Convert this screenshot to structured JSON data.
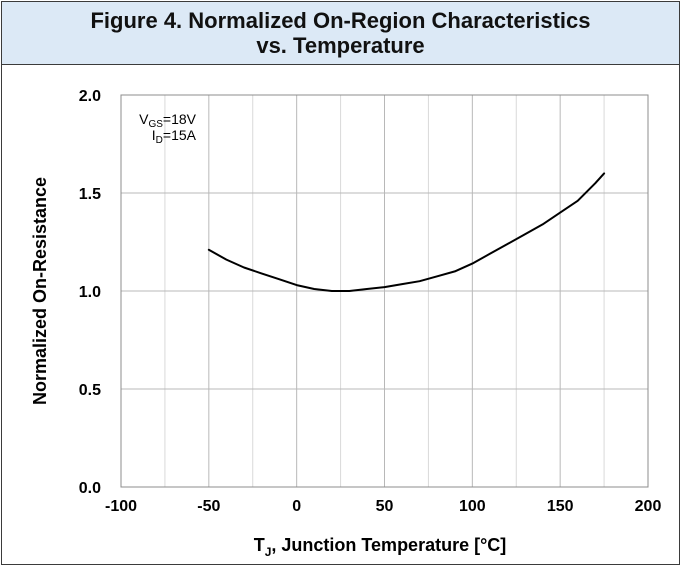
{
  "chart_data": {
    "type": "line",
    "title_line1": "Figure 4. Normalized On-Region Characteristics",
    "title_line2": "vs. Temperature",
    "xlabel_main": "T",
    "xlabel_sub": "J",
    "xlabel_rest": ", Junction Temperature [°C]",
    "ylabel": "Normalized On-Resistance",
    "xlim": [
      -100,
      200
    ],
    "ylim": [
      0.0,
      2.0
    ],
    "x_ticks": [
      -100,
      -50,
      0,
      50,
      100,
      150,
      200
    ],
    "x_tick_labels": [
      "-100",
      "-50",
      "0",
      "50",
      "100",
      "150",
      "200"
    ],
    "y_ticks": [
      0.0,
      0.5,
      1.0,
      1.5,
      2.0
    ],
    "y_tick_labels": [
      "0.0",
      "0.5",
      "1.0",
      "1.5",
      "2.0"
    ],
    "grid": true,
    "annotations": [
      {
        "main": "V",
        "sub": "GS",
        "rest": "=18V"
      },
      {
        "main": "I",
        "sub": "D",
        "rest": "=15A"
      }
    ],
    "series": [
      {
        "color": "#000000",
        "x": [
          -50,
          -40,
          -30,
          -20,
          -10,
          0,
          10,
          20,
          25,
          30,
          40,
          50,
          60,
          70,
          80,
          90,
          100,
          110,
          120,
          130,
          140,
          150,
          160,
          170,
          175
        ],
        "y": [
          1.21,
          1.16,
          1.12,
          1.09,
          1.06,
          1.03,
          1.01,
          1.0,
          1.0,
          1.0,
          1.01,
          1.02,
          1.035,
          1.05,
          1.075,
          1.1,
          1.14,
          1.19,
          1.24,
          1.29,
          1.34,
          1.4,
          1.46,
          1.55,
          1.6
        ]
      }
    ]
  }
}
